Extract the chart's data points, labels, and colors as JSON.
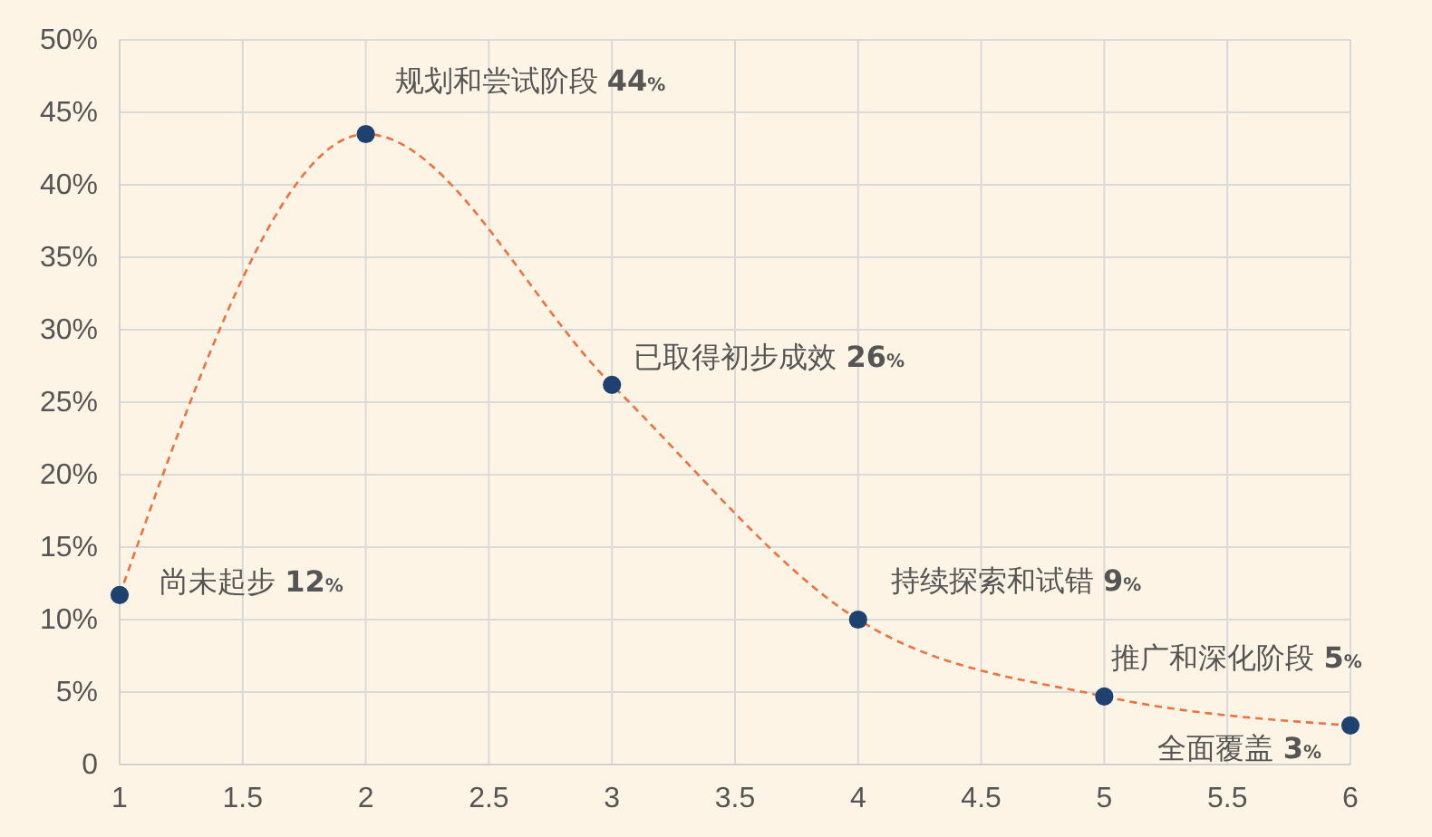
{
  "chart_data": {
    "type": "line",
    "x": [
      1,
      2,
      3,
      4,
      5,
      6
    ],
    "series": [
      {
        "color": "#f0703e",
        "line_style": "dashed",
        "marker": "none",
        "values": [
          11.7,
          43.5,
          26.2,
          10.0,
          4.7,
          2.7
        ]
      },
      {
        "type": "scatter",
        "color": "#1f4170",
        "marker": "circle",
        "values": [
          11.7,
          43.5,
          26.2,
          10.0,
          4.7,
          2.7
        ]
      }
    ],
    "annotations": [
      {
        "text": "尚未起步 12%",
        "x": 1,
        "y": 11.7
      },
      {
        "text": "规划和尝试阶段 44%",
        "x": 2,
        "y": 43.5
      },
      {
        "text": "已取得初步成效 26%",
        "x": 3,
        "y": 26.2
      },
      {
        "text": "持续探索和试错 9%",
        "x": 4,
        "y": 10.0
      },
      {
        "text": "推广和深化阶段 5%",
        "x": 5,
        "y": 4.7
      },
      {
        "text": "全面覆盖 3%",
        "x": 6,
        "y": 2.7
      }
    ],
    "xlim": [
      1,
      6
    ],
    "xticks": [
      1,
      1.5,
      2,
      2.5,
      3,
      3.5,
      4,
      4.5,
      5,
      5.5,
      6
    ],
    "ylim": [
      0,
      50
    ],
    "yticks": [
      0,
      {
        "value": 5,
        "label": "5%"
      },
      {
        "value": 10,
        "label": "10%"
      },
      {
        "value": 15,
        "label": "15%"
      },
      {
        "value": 20,
        "label": "20%"
      },
      {
        "value": 25,
        "label": "25%"
      },
      {
        "value": 30,
        "label": "30%"
      },
      {
        "value": 35,
        "label": "35%"
      },
      {
        "value": 40,
        "label": "40%"
      },
      {
        "value": 45,
        "label": "45%"
      },
      {
        "value": 50,
        "label": "50%"
      }
    ],
    "grid": true
  }
}
